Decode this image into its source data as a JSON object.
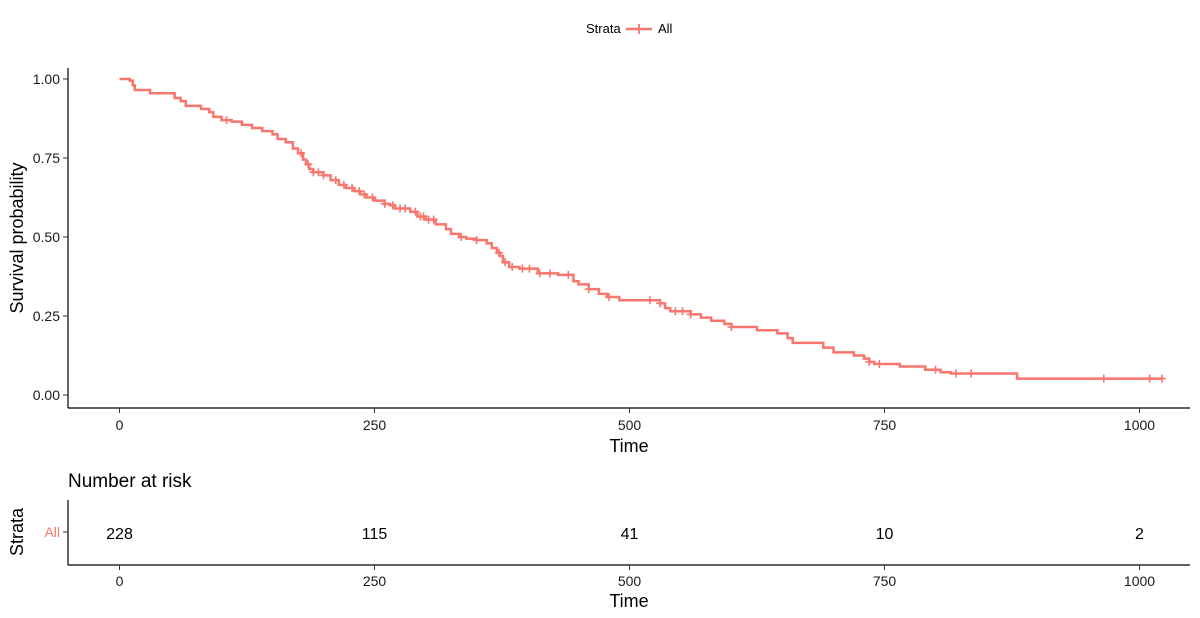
{
  "legend": {
    "title": "Strata",
    "entries": [
      "All"
    ]
  },
  "chart_data": [
    {
      "type": "line",
      "subtype": "kaplan-meier step curve with censor marks",
      "xlabel": "Time",
      "ylabel": "Survival probability",
      "xlim": [
        0,
        1022
      ],
      "ylim": [
        0,
        1
      ],
      "x_ticks": [
        "0",
        "250",
        "500",
        "750",
        "1000"
      ],
      "y_ticks": [
        "0.00",
        "0.25",
        "0.50",
        "0.75",
        "1.00"
      ],
      "x_tick_values": [
        0,
        250,
        500,
        750,
        1000
      ],
      "y_tick_values": [
        0,
        0.25,
        0.5,
        0.75,
        1
      ],
      "grid": false,
      "legend_position": "top",
      "color": "#F8766D",
      "series": [
        {
          "name": "All",
          "steps": [
            [
              0,
              1.0
            ],
            [
              10,
              0.995
            ],
            [
              13,
              0.98
            ],
            [
              15,
              0.965
            ],
            [
              30,
              0.955
            ],
            [
              54,
              0.94
            ],
            [
              60,
              0.93
            ],
            [
              65,
              0.915
            ],
            [
              80,
              0.905
            ],
            [
              88,
              0.895
            ],
            [
              92,
              0.88
            ],
            [
              100,
              0.87
            ],
            [
              110,
              0.865
            ],
            [
              120,
              0.855
            ],
            [
              130,
              0.845
            ],
            [
              140,
              0.835
            ],
            [
              150,
              0.825
            ],
            [
              155,
              0.81
            ],
            [
              163,
              0.8
            ],
            [
              170,
              0.78
            ],
            [
              175,
              0.765
            ],
            [
              180,
              0.745
            ],
            [
              183,
              0.73
            ],
            [
              186,
              0.715
            ],
            [
              190,
              0.705
            ],
            [
              200,
              0.695
            ],
            [
              207,
              0.68
            ],
            [
              215,
              0.665
            ],
            [
              222,
              0.655
            ],
            [
              230,
              0.645
            ],
            [
              236,
              0.635
            ],
            [
              242,
              0.625
            ],
            [
              250,
              0.615
            ],
            [
              260,
              0.605
            ],
            [
              265,
              0.6
            ],
            [
              270,
              0.59
            ],
            [
              285,
              0.58
            ],
            [
              292,
              0.565
            ],
            [
              300,
              0.555
            ],
            [
              310,
              0.54
            ],
            [
              320,
              0.525
            ],
            [
              325,
              0.51
            ],
            [
              333,
              0.5
            ],
            [
              340,
              0.495
            ],
            [
              350,
              0.49
            ],
            [
              360,
              0.48
            ],
            [
              365,
              0.465
            ],
            [
              370,
              0.45
            ],
            [
              373,
              0.44
            ],
            [
              376,
              0.42
            ],
            [
              382,
              0.405
            ],
            [
              392,
              0.4
            ],
            [
              410,
              0.385
            ],
            [
              430,
              0.38
            ],
            [
              445,
              0.36
            ],
            [
              450,
              0.35
            ],
            [
              460,
              0.335
            ],
            [
              470,
              0.32
            ],
            [
              478,
              0.31
            ],
            [
              490,
              0.3
            ],
            [
              530,
              0.29
            ],
            [
              535,
              0.275
            ],
            [
              540,
              0.265
            ],
            [
              560,
              0.255
            ],
            [
              570,
              0.245
            ],
            [
              580,
              0.235
            ],
            [
              593,
              0.225
            ],
            [
              600,
              0.215
            ],
            [
              625,
              0.205
            ],
            [
              645,
              0.195
            ],
            [
              655,
              0.18
            ],
            [
              660,
              0.165
            ],
            [
              690,
              0.15
            ],
            [
              700,
              0.135
            ],
            [
              720,
              0.125
            ],
            [
              730,
              0.115
            ],
            [
              735,
              0.105
            ],
            [
              740,
              0.098
            ],
            [
              765,
              0.09
            ],
            [
              790,
              0.08
            ],
            [
              805,
              0.072
            ],
            [
              815,
              0.068
            ],
            [
              880,
              0.052
            ],
            [
              1022,
              0.052
            ]
          ],
          "censor_times": [
            105,
            178,
            185,
            190,
            195,
            200,
            212,
            220,
            228,
            235,
            240,
            248,
            260,
            268,
            275,
            280,
            290,
            295,
            298,
            303,
            308,
            335,
            350,
            372,
            378,
            385,
            395,
            402,
            412,
            422,
            440,
            460,
            480,
            520,
            530,
            545,
            552,
            560,
            600,
            735,
            745,
            800,
            820,
            835,
            965,
            1010,
            1022
          ]
        }
      ]
    },
    {
      "type": "table",
      "title": "Number at risk",
      "xlabel": "Time",
      "ylabel": "Strata",
      "row_label": "All",
      "x_ticks": [
        "0",
        "250",
        "500",
        "750",
        "1000"
      ],
      "times": [
        0,
        250,
        500,
        750,
        1000
      ],
      "values": [
        "228",
        "115",
        "41",
        "10",
        "2"
      ]
    }
  ]
}
